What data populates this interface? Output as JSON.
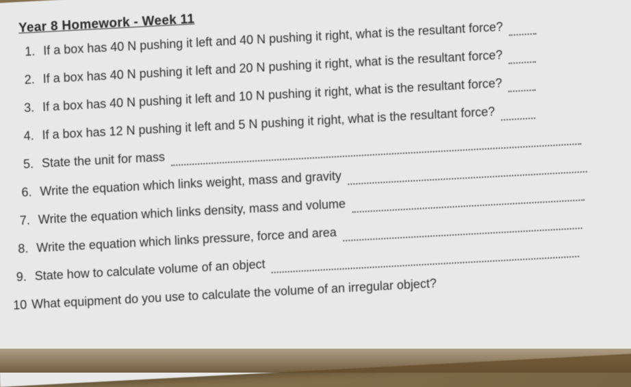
{
  "document": {
    "title": "Year 8 Homework - Week 11",
    "text_color": "#2a2a2a",
    "background_color": "#e8e8e8",
    "font_family": "Arial",
    "title_fontsize": 19,
    "question_fontsize": 18,
    "questions": [
      {
        "num": "1.",
        "text": "If a box has 40 N pushing it left and 40 N pushing it right, what is the resultant force?",
        "dotted_width": 40
      },
      {
        "num": "2.",
        "text": "If a box has 40 N pushing it left and 20 N pushing it right, what is the resultant force?",
        "dotted_width": 40
      },
      {
        "num": "3.",
        "text": "If a box has 40 N pushing it left and 10 N pushing it right, what is the resultant force?",
        "dotted_width": 40
      },
      {
        "num": "4.",
        "text": "If a box has 12 N pushing it left and 5 N pushing it right, what is the resultant force?",
        "dotted_width": 50
      },
      {
        "num": "5.",
        "text": "State the unit for mass",
        "dotted_width": 600
      },
      {
        "num": "6.",
        "text": "Write the equation which links weight, mass and gravity",
        "dotted_width": 350
      },
      {
        "num": "7.",
        "text": "Write the equation which links density, mass and volume",
        "dotted_width": 340
      },
      {
        "num": "8.",
        "text": "Write the equation which links pressure, force and area",
        "dotted_width": 350
      },
      {
        "num": "9.",
        "text": "State how to calculate volume of an object",
        "dotted_width": 450
      },
      {
        "num": "10",
        "text": "What equipment do you use to calculate the volume of an irregular object?",
        "dotted_width": 0
      }
    ]
  },
  "scene": {
    "desk_color_top": "#8a7550",
    "desk_color_bottom": "#6b5a3a",
    "paper_rotation_deg": -2,
    "paper_skew_deg": -1
  }
}
